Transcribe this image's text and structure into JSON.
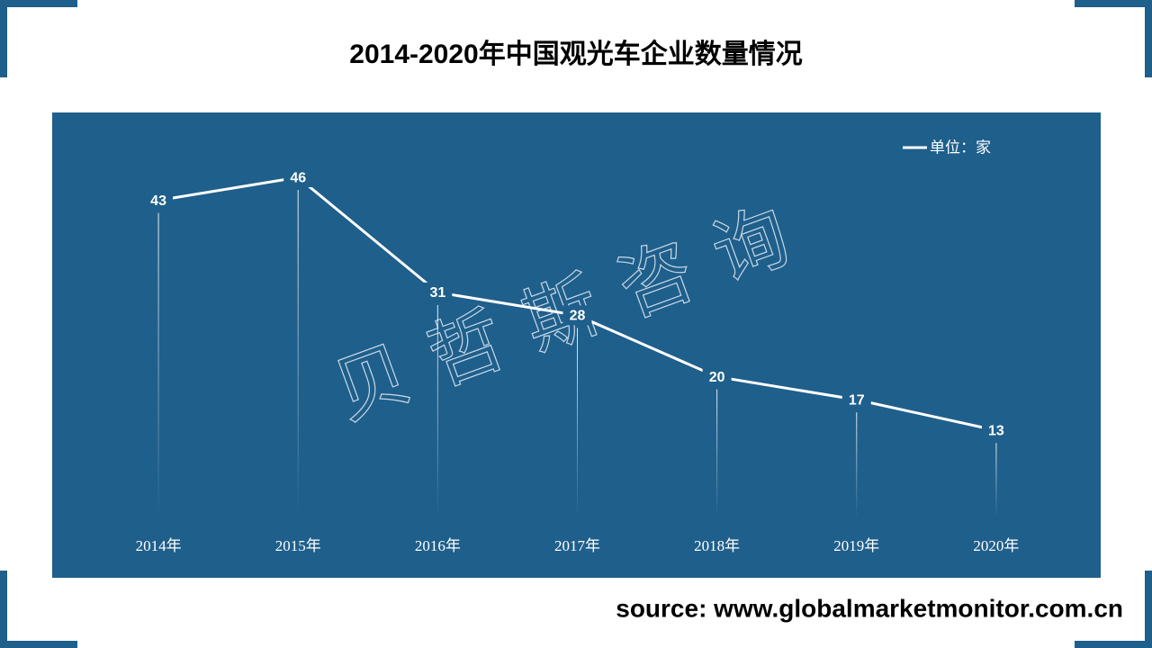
{
  "chart_data": {
    "type": "line",
    "title": "2014-2020年中国观光车企业数量情况",
    "categories": [
      "2014年",
      "2015年",
      "2016年",
      "2017年",
      "2018年",
      "2019年",
      "2020年"
    ],
    "series": [
      {
        "name": "单位：家",
        "color": "#ffffff",
        "values": [
          43,
          46,
          31,
          28,
          20,
          17,
          13
        ]
      }
    ],
    "ylim": [
      0,
      50
    ],
    "background": "#1f5f8b",
    "watermark": "贝哲斯咨询",
    "source": "source: www.globalmarketmonitor.com.cn"
  }
}
